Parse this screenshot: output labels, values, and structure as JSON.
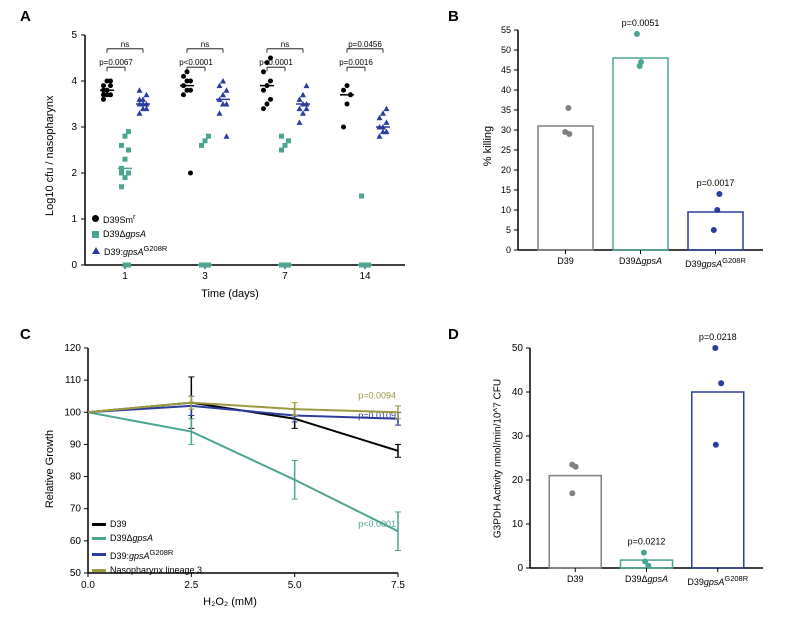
{
  "labels": {
    "A": "A",
    "B": "B",
    "C": "C",
    "D": "D"
  },
  "colors": {
    "black": "#000000",
    "teal": "#4aa593",
    "blue": "#2a3d9e",
    "olive": "#9d9a3f",
    "gray": "#808080"
  },
  "panelA": {
    "ylabel": "Log10 cfu / nasopharynx",
    "xlabel": "Time (days)",
    "ylim": [
      0,
      5
    ],
    "ytick_step": 1,
    "categories": [
      "1",
      "3",
      "7",
      "14"
    ],
    "legend": [
      {
        "label_plain": "D39Sm",
        "label_sup": "r",
        "marker": "circle",
        "color": "#000000"
      },
      {
        "label_html": "D39Δ<i>gpsA</i>",
        "marker": "square",
        "color": "#4aa593"
      },
      {
        "label_html": "D39:<i>gpsA</i><sup>G208R</sup>",
        "marker": "triangle",
        "color": "#2a3d9e"
      }
    ],
    "groups": [
      {
        "day": "1",
        "black": [
          3.6,
          3.7,
          3.7,
          3.8,
          3.8,
          3.9,
          3.9,
          4.0,
          4.0,
          3.7
        ],
        "teal": [
          1.7,
          1.9,
          2.0,
          2.1,
          2.3,
          2.5,
          2.6,
          2.8,
          2.9,
          2.0,
          0,
          0
        ],
        "blue": [
          3.3,
          3.4,
          3.4,
          3.5,
          3.5,
          3.5,
          3.6,
          3.6,
          3.7,
          3.8,
          3.5
        ],
        "pvals": [
          {
            "text": "p=0.0067",
            "y": 4.3,
            "bar": true,
            "i1": 0,
            "i2": 1
          },
          {
            "text": "ns",
            "y": 4.7,
            "bar": true,
            "i1": 0,
            "i2": 2
          }
        ]
      },
      {
        "day": "3",
        "black": [
          3.7,
          3.8,
          3.8,
          3.9,
          4.0,
          4.0,
          4.1,
          4.2,
          2.0
        ],
        "teal": [
          2.6,
          2.7,
          2.8,
          0,
          0,
          0,
          0,
          0,
          0,
          0
        ],
        "blue": [
          3.3,
          3.5,
          3.5,
          3.6,
          3.7,
          3.8,
          3.9,
          4.0,
          2.8
        ],
        "pvals": [
          {
            "text": "p<0.0001",
            "y": 4.3,
            "bar": true,
            "i1": 0,
            "i2": 1
          },
          {
            "text": "ns",
            "y": 4.7,
            "bar": true,
            "i1": 0,
            "i2": 2
          }
        ]
      },
      {
        "day": "7",
        "black": [
          3.4,
          3.5,
          3.6,
          3.8,
          3.9,
          4.0,
          4.2,
          4.4,
          4.5
        ],
        "teal": [
          2.5,
          2.6,
          2.7,
          2.8,
          0,
          0,
          0,
          0,
          0
        ],
        "blue": [
          3.1,
          3.3,
          3.4,
          3.4,
          3.5,
          3.5,
          3.6,
          3.7,
          3.9
        ],
        "pvals": [
          {
            "text": "p<0.0001",
            "y": 4.3,
            "bar": true,
            "i1": 0,
            "i2": 1
          },
          {
            "text": "ns",
            "y": 4.7,
            "bar": true,
            "i1": 0,
            "i2": 2
          }
        ]
      },
      {
        "day": "14",
        "black": [
          3.0,
          3.5,
          3.7,
          3.8,
          3.9
        ],
        "teal": [
          1.5,
          0,
          0,
          0,
          0,
          0,
          0,
          0,
          0
        ],
        "blue": [
          2.8,
          2.9,
          2.9,
          3.0,
          3.0,
          3.1,
          3.2,
          3.3,
          3.4
        ],
        "pvals": [
          {
            "text": "p=0.0016",
            "y": 4.3,
            "bar": true,
            "i1": 0,
            "i2": 1
          },
          {
            "text": "p=0.0456",
            "y": 4.7,
            "bar": true,
            "i1": 0,
            "i2": 2
          }
        ]
      }
    ]
  },
  "panelB": {
    "ylabel": "% killing",
    "ylim": [
      0,
      55
    ],
    "yticks": [
      0,
      5,
      10,
      15,
      20,
      25,
      30,
      35,
      40,
      45,
      50,
      55
    ],
    "categories": [
      "D39",
      "D39ΔgpsA",
      "D39gpsA^G208R"
    ],
    "bars": [
      {
        "label_html": "D39",
        "height": 31,
        "color": "#808080",
        "points": [
          29,
          29.5,
          35.5
        ]
      },
      {
        "label_html": "D39Δ<i>gpsA</i>",
        "height": 48,
        "color": "#4aa593",
        "points": [
          46,
          47,
          54
        ],
        "pval": "p=0.0051"
      },
      {
        "label_html": "D39<i>gpsA</i><sup>G208R</sup>",
        "height": 9.5,
        "color": "#2a3d9e",
        "points": [
          5,
          10,
          14
        ],
        "pval": "p=0.0017"
      }
    ]
  },
  "panelC": {
    "ylabel": "Relative Growth",
    "xlabel": "H₂O₂ (mM)",
    "ylim": [
      50,
      120
    ],
    "yticks": [
      50,
      60,
      70,
      80,
      90,
      100,
      110,
      120
    ],
    "xlim": [
      0.0,
      7.5
    ],
    "xticks": [
      0.0,
      2.5,
      5.0,
      7.5
    ],
    "legend": [
      {
        "label_html": "D39",
        "color": "#000000"
      },
      {
        "label_html": "D39Δ<i>gpsA</i>",
        "color": "#4aa593"
      },
      {
        "label_html": "D39:<i>gpsA</i><sup>G208R</sup>",
        "color": "#2a3d9e"
      },
      {
        "label_html": "Nasopharynx lineage 3",
        "color": "#9d9a3f"
      }
    ],
    "series": [
      {
        "name": "D39",
        "color": "#000000",
        "x": [
          0,
          2.5,
          5,
          7.5
        ],
        "y": [
          100,
          103,
          98,
          88
        ],
        "err": [
          0,
          8,
          3,
          2
        ]
      },
      {
        "name": "D39dGpsA",
        "color": "#4aa593",
        "x": [
          0,
          2.5,
          5,
          7.5
        ],
        "y": [
          100,
          94,
          79,
          63
        ],
        "err": [
          0,
          4,
          6,
          6
        ],
        "pval": "p<0.0001"
      },
      {
        "name": "D39G208R",
        "color": "#2a3d9e",
        "x": [
          0,
          2.5,
          5,
          7.5
        ],
        "y": [
          100,
          102,
          99,
          98
        ],
        "err": [
          0,
          3,
          2,
          2
        ],
        "pval": "p=0.0109"
      },
      {
        "name": "NP3",
        "color": "#9d9a3f",
        "x": [
          0,
          2.5,
          5,
          7.5
        ],
        "y": [
          100,
          103,
          101,
          100
        ],
        "err": [
          0,
          2,
          2,
          2
        ],
        "pval": "p=0.0094"
      }
    ]
  },
  "panelD": {
    "ylabel": "G3PDH Activity nmol/min/10^7 CFU",
    "ylim": [
      0,
      50
    ],
    "yticks": [
      0,
      10,
      20,
      30,
      40,
      50
    ],
    "bars": [
      {
        "label_html": "D39",
        "height": 21,
        "color": "#808080",
        "points": [
          17,
          23,
          23.5
        ]
      },
      {
        "label_html": "D39Δ<i>gpsA</i>",
        "height": 1.8,
        "color": "#4aa593",
        "points": [
          0.5,
          1.5,
          3.5
        ],
        "pval": "p=0.0212"
      },
      {
        "label_html": "D39<i>gpsA</i><sup>G208R</sup>",
        "height": 40,
        "color": "#2a3d9e",
        "points": [
          28,
          42,
          50
        ],
        "pval": "p=0.0218"
      }
    ]
  }
}
